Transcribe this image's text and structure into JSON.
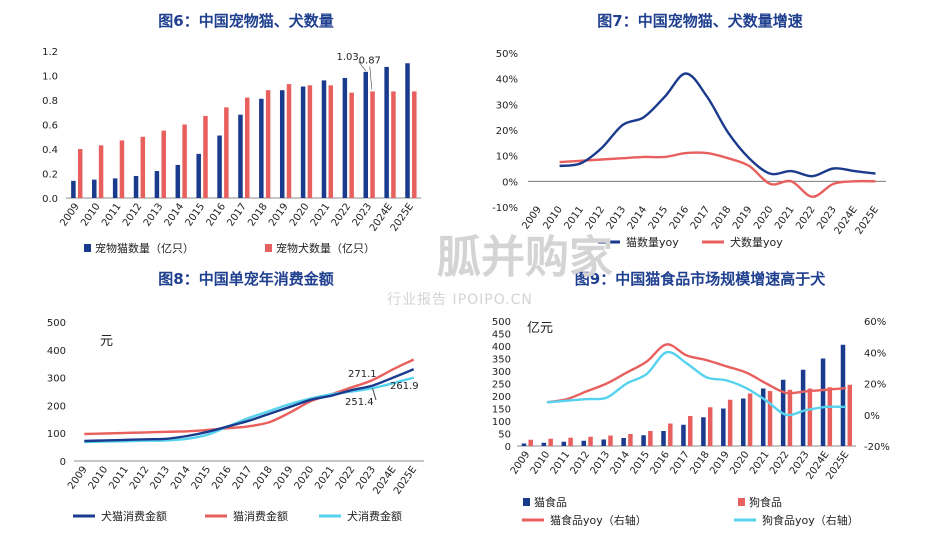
{
  "colors": {
    "navy": "#1a3a8e",
    "red": "#e8605e",
    "cyan": "#55d2ee"
  },
  "years": [
    "2009",
    "2010",
    "2011",
    "2012",
    "2013",
    "2014",
    "2015",
    "2016",
    "2017",
    "2018",
    "2019",
    "2020",
    "2021",
    "2022",
    "2023",
    "2024E",
    "2025E"
  ],
  "chart_data": [
    {
      "id": "c6",
      "type": "bar",
      "title": "图6：中国宠物猫、犬数量",
      "ylim": [
        0,
        1.2
      ],
      "yticks": [
        "0.0",
        "0.2",
        "0.4",
        "0.6",
        "0.8",
        "1.0",
        "1.2"
      ],
      "series": [
        {
          "name": "宠物猫数量（亿只）",
          "values": [
            0.14,
            0.15,
            0.16,
            0.18,
            0.22,
            0.27,
            0.36,
            0.51,
            0.68,
            0.81,
            0.88,
            0.91,
            0.96,
            0.98,
            1.03,
            1.07,
            1.1
          ]
        },
        {
          "name": "宠物犬数量（亿只）",
          "values": [
            0.4,
            0.43,
            0.47,
            0.5,
            0.55,
            0.6,
            0.67,
            0.74,
            0.82,
            0.88,
            0.93,
            0.92,
            0.92,
            0.86,
            0.87,
            0.87,
            0.87
          ]
        }
      ],
      "annotations": [
        "1.03",
        "0.87"
      ]
    },
    {
      "id": "c7",
      "type": "line",
      "title": "图7：中国宠物猫、犬数量增速",
      "ylim": [
        -0.1,
        0.5
      ],
      "yticks": [
        "-10%",
        "0%",
        "10%",
        "20%",
        "30%",
        "40%",
        "50%"
      ],
      "series": [
        {
          "name": "猫数量yoy",
          "values": [
            null,
            0.06,
            0.07,
            0.13,
            0.22,
            0.25,
            0.33,
            0.42,
            0.33,
            0.19,
            0.09,
            0.03,
            0.04,
            0.02,
            0.05,
            0.04,
            0.03
          ]
        },
        {
          "name": "犬数量yoy",
          "values": [
            null,
            0.075,
            0.08,
            0.085,
            0.09,
            0.095,
            0.095,
            0.11,
            0.11,
            0.09,
            0.06,
            -0.01,
            0.0,
            -0.06,
            -0.01,
            0.0,
            0.0
          ]
        }
      ]
    },
    {
      "id": "c8",
      "type": "line",
      "title": "图8：中国单宠年消费金额",
      "unit": "元",
      "ylim": [
        0,
        500
      ],
      "yticks": [
        "0",
        "100",
        "200",
        "300",
        "400",
        "500"
      ],
      "series": [
        {
          "name": "犬猫消费金额",
          "values": [
            72,
            74,
            76,
            78,
            80,
            90,
            105,
            125,
            145,
            170,
            195,
            220,
            235,
            255,
            271.1,
            300,
            330
          ]
        },
        {
          "name": "猫消费金额",
          "values": [
            97,
            99,
            101,
            103,
            105,
            107,
            112,
            118,
            125,
            140,
            175,
            215,
            240,
            265,
            291,
            330,
            365
          ]
        },
        {
          "name": "犬消费金额",
          "values": [
            68,
            70,
            71,
            73,
            74,
            80,
            95,
            125,
            155,
            180,
            205,
            225,
            240,
            250,
            261.9,
            280,
            300
          ]
        }
      ],
      "annotations": [
        "271.1",
        "261.9",
        "251.4"
      ]
    },
    {
      "id": "c9",
      "type": "bar",
      "title": "图9：中国猫食品市场规模增速高于犬",
      "unit": "亿元",
      "ylim": [
        0,
        500
      ],
      "ylim_right": [
        -0.2,
        0.6
      ],
      "yticks": [
        "0",
        "50",
        "100",
        "150",
        "200",
        "250",
        "300",
        "350",
        "400",
        "450",
        "500"
      ],
      "yticks_right": [
        "-20%",
        "0%",
        "20%",
        "40%",
        "60%"
      ],
      "series": [
        {
          "name": "猫食品",
          "values": [
            10,
            13,
            17,
            21,
            26,
            32,
            43,
            60,
            85,
            115,
            150,
            190,
            230,
            265,
            305,
            350,
            405
          ]
        },
        {
          "name": "狗食品",
          "values": [
            25,
            29,
            33,
            37,
            42,
            48,
            60,
            90,
            120,
            155,
            185,
            210,
            220,
            225,
            230,
            235,
            245
          ]
        },
        {
          "name": "猫食品yoy（右轴）",
          "axis": "right",
          "values": [
            null,
            0.08,
            0.1,
            0.15,
            0.2,
            0.27,
            0.34,
            0.45,
            0.38,
            0.35,
            0.31,
            0.27,
            0.2,
            0.14,
            0.15,
            0.16,
            0.17
          ]
        },
        {
          "name": "狗食品yoy（右轴）",
          "axis": "right",
          "values": [
            null,
            0.08,
            0.09,
            0.1,
            0.11,
            0.2,
            0.26,
            0.4,
            0.33,
            0.24,
            0.22,
            0.17,
            0.09,
            0.0,
            0.03,
            0.05,
            0.05
          ]
        }
      ]
    }
  ],
  "watermark": {
    "main": "胍并购家",
    "sub": "行业报告 IPOIPO.CN"
  }
}
